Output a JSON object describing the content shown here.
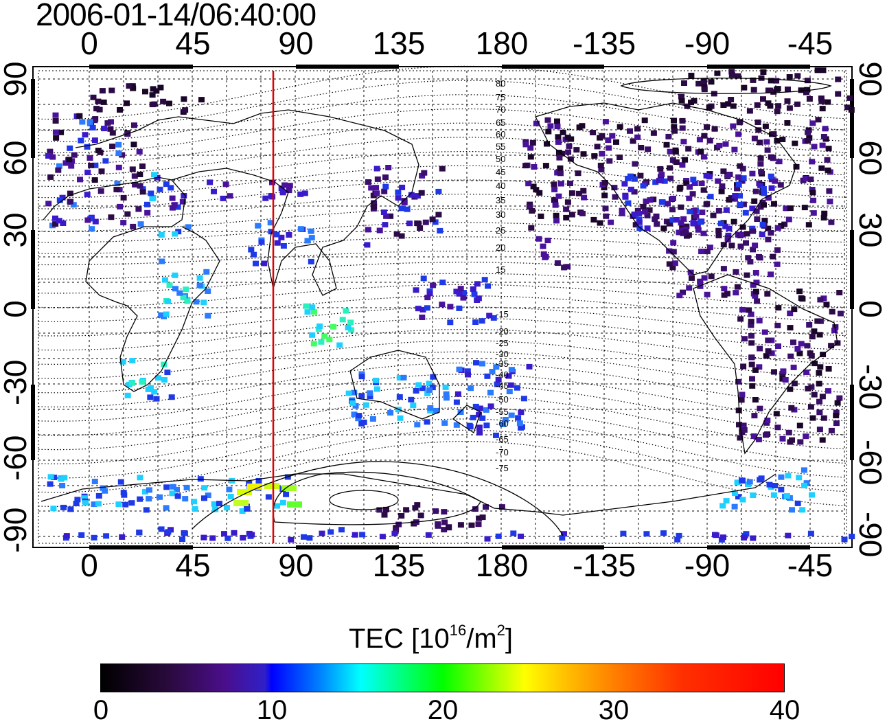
{
  "header": {
    "timestamp": "2006-01-14/06:40:00"
  },
  "map": {
    "projection": "equirectangular",
    "longitude_ticks": [
      "0",
      "45",
      "90",
      "135",
      "180",
      "-135",
      "-90",
      "-45"
    ],
    "latitude_ticks": [
      "90",
      "60",
      "30",
      "0",
      "-30",
      "-60",
      "-90"
    ],
    "marker_line_longitude": 80,
    "marker_line_color": "#e00000",
    "contour_labels": [
      "80",
      "75",
      "70",
      "65",
      "60",
      "55",
      "50",
      "45",
      "40",
      "35",
      "30",
      "25",
      "20",
      "15",
      "-15",
      "-20",
      "-25",
      "-30",
      "-35",
      "-40",
      "-45",
      "-50",
      "-55",
      "-60",
      "-65",
      "-70",
      "-75"
    ]
  },
  "colorbar": {
    "title": "TEC  [10",
    "title_sup": "16",
    "title_unit": "/m",
    "title_sup2": "2",
    "title_end": "]",
    "ticks": [
      "0",
      "10",
      "20",
      "30",
      "40"
    ],
    "range": [
      0,
      40
    ],
    "colormap": [
      "#000000",
      "#4a0e8a",
      "#0000ff",
      "#00ffff",
      "#00ff00",
      "#ffff00",
      "#ff8000",
      "#ff0000"
    ]
  }
}
